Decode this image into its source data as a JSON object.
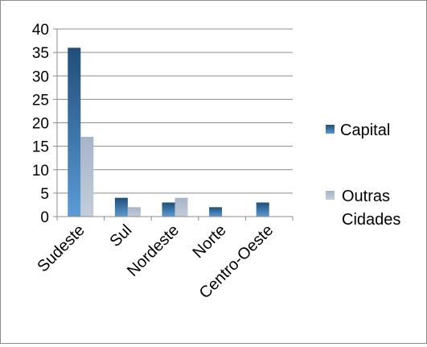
{
  "chart_data": {
    "type": "bar",
    "title": "",
    "xlabel": "",
    "ylabel": "",
    "categories": [
      "Sudeste",
      "Sul",
      "Nordeste",
      "Norte",
      "Centro-Oeste"
    ],
    "series": [
      {
        "name": "Capital",
        "values": [
          36,
          4,
          3,
          2,
          3
        ],
        "color": "#3f7fbf"
      },
      {
        "name": "Outras Cidades",
        "values": [
          17,
          2,
          4,
          0,
          0
        ],
        "color": "#aab8cc"
      }
    ],
    "ylim": [
      0,
      40
    ],
    "yticks": [
      "0",
      "5",
      "10",
      "15",
      "20",
      "25",
      "30",
      "35",
      "40"
    ],
    "grid": true,
    "legend_position": "right"
  },
  "legend": {
    "capital_label": "Capital",
    "outras_line1": "Outras",
    "outras_line2": "Cidades"
  }
}
